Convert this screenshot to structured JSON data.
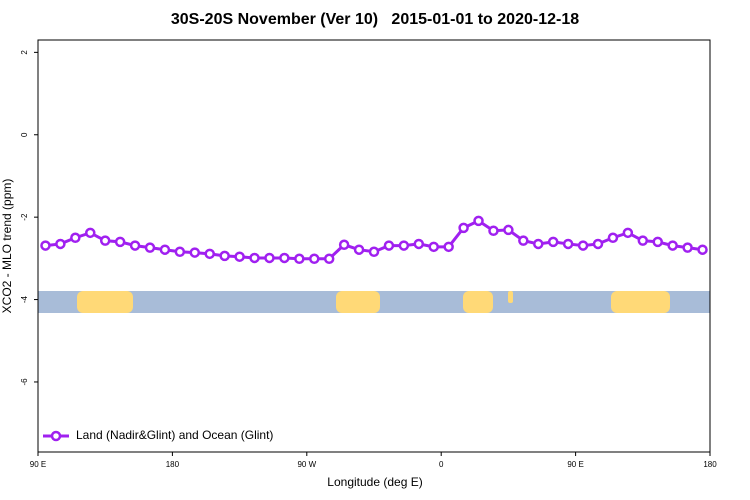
{
  "chart_data": {
    "type": "line",
    "title": "30S-20S November (Ver 10)   2015-01-01 to 2020-12-18",
    "x_label": "Longitude (deg E)",
    "y_label": "XCO2 - MLO trend (ppm)",
    "xlim": [
      90,
      540
    ],
    "xticks": [
      {
        "value": 90,
        "label": "90 E"
      },
      180,
      {
        "value": 270,
        "label": "90 W"
      },
      {
        "value": 360,
        "label": "0"
      },
      {
        "value": 450,
        "label": "90 E"
      },
      {
        "value": 540,
        "label": "180"
      }
    ],
    "ylim": [
      -7.7,
      2.3
    ],
    "yticks": [
      2,
      0,
      -2,
      -4,
      -6
    ],
    "legend": "bottom-left",
    "x": [
      95,
      105,
      115,
      125,
      135,
      145,
      155,
      165,
      175,
      185,
      195,
      205,
      215,
      225,
      235,
      245,
      255,
      265,
      275,
      285,
      295,
      305,
      315,
      325,
      335,
      345,
      355,
      365,
      375,
      385,
      395,
      405,
      415,
      425,
      435,
      445,
      455,
      465,
      475,
      485,
      495,
      505,
      515,
      525,
      535
    ],
    "series": [
      {
        "name": "Land (Nadir&Glint) and Ocean (Glint)",
        "color": "#a020f0",
        "values": [
          -2.69,
          -2.65,
          -2.5,
          -2.38,
          -2.57,
          -2.6,
          -2.69,
          -2.74,
          -2.79,
          -2.84,
          -2.86,
          -2.89,
          -2.94,
          -2.96,
          -2.99,
          -2.99,
          -2.99,
          -3.01,
          -3.01,
          -3.01,
          -2.67,
          -2.79,
          -2.84,
          -2.69,
          -2.69,
          -2.65,
          -2.72,
          -2.72,
          -2.26,
          -2.09,
          -2.33,
          -2.31,
          -2.57,
          -2.65,
          -2.6,
          -2.65,
          -2.69,
          -2.65,
          -2.5,
          -2.38,
          -2.57,
          -2.6,
          -2.69,
          -2.74,
          -2.79
        ]
      }
    ]
  }
}
